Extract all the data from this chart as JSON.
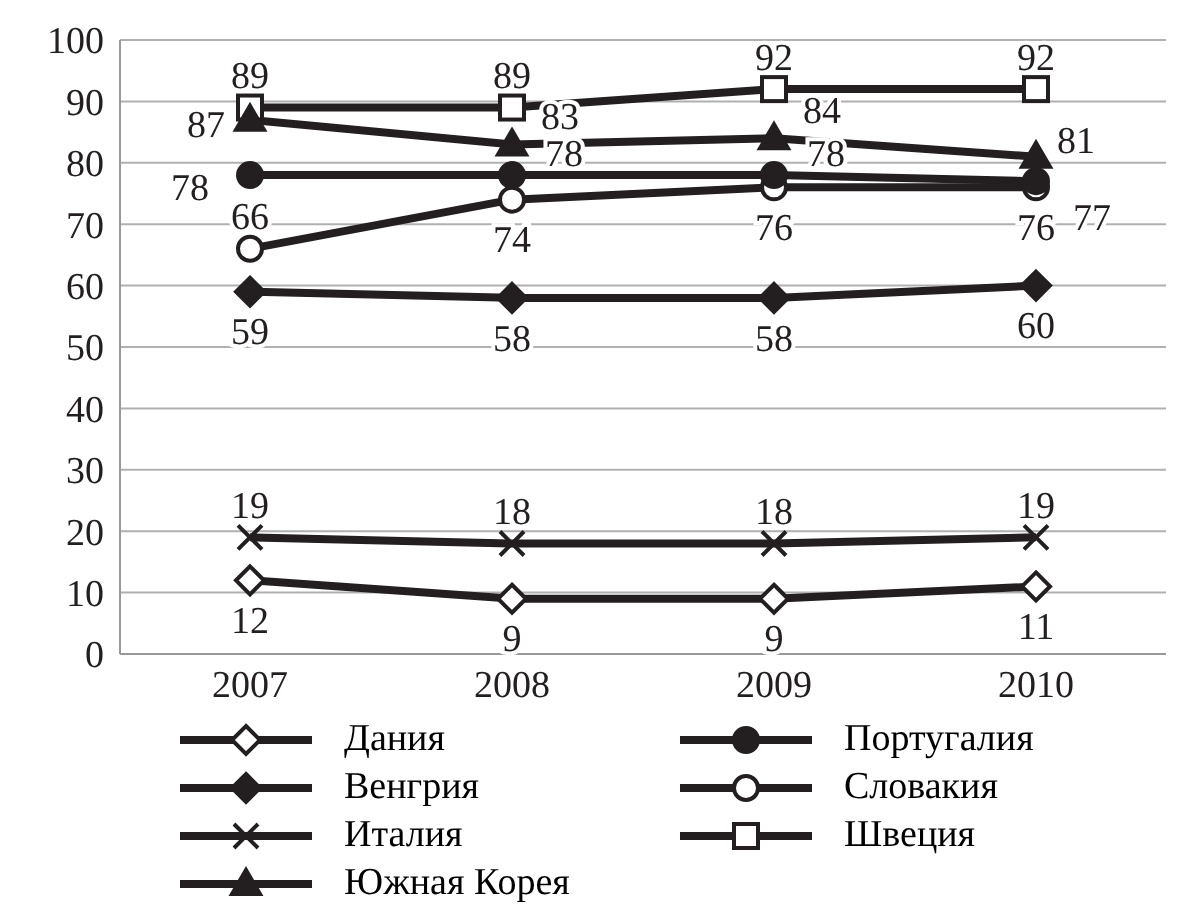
{
  "chart_data": {
    "type": "line",
    "categories": [
      "2007",
      "2008",
      "2009",
      "2010"
    ],
    "ylim": [
      0,
      100
    ],
    "yticks": [
      0,
      10,
      20,
      30,
      40,
      50,
      60,
      70,
      80,
      90,
      100
    ],
    "grid": "y",
    "legend": "bottom",
    "data_labels": true,
    "line_style": "solid",
    "series": [
      {
        "name": "Дания",
        "color": "#231f20",
        "marker": "diamond",
        "values": [
          12,
          9,
          9,
          11
        ]
      },
      {
        "name": "Португалия",
        "color": "#231f20",
        "marker": "circle",
        "values": [
          78,
          78,
          78,
          77
        ]
      },
      {
        "name": "Венгрия",
        "color": "#231f20",
        "marker": "diamond",
        "values": [
          59,
          58,
          58,
          60
        ]
      },
      {
        "name": "Словакия",
        "color": "#231f20",
        "marker": "circle",
        "values": [
          66,
          74,
          76,
          76
        ]
      },
      {
        "name": "Италия",
        "color": "#231f20",
        "marker": "cross",
        "values": [
          19,
          18,
          18,
          19
        ]
      },
      {
        "name": "Швеция",
        "color": "#231f20",
        "marker": "square",
        "values": [
          89,
          89,
          92,
          92
        ]
      },
      {
        "name": "Южная Корея",
        "color": "#231f20",
        "marker": "triangle",
        "values": [
          87,
          83,
          84,
          81
        ]
      }
    ]
  }
}
